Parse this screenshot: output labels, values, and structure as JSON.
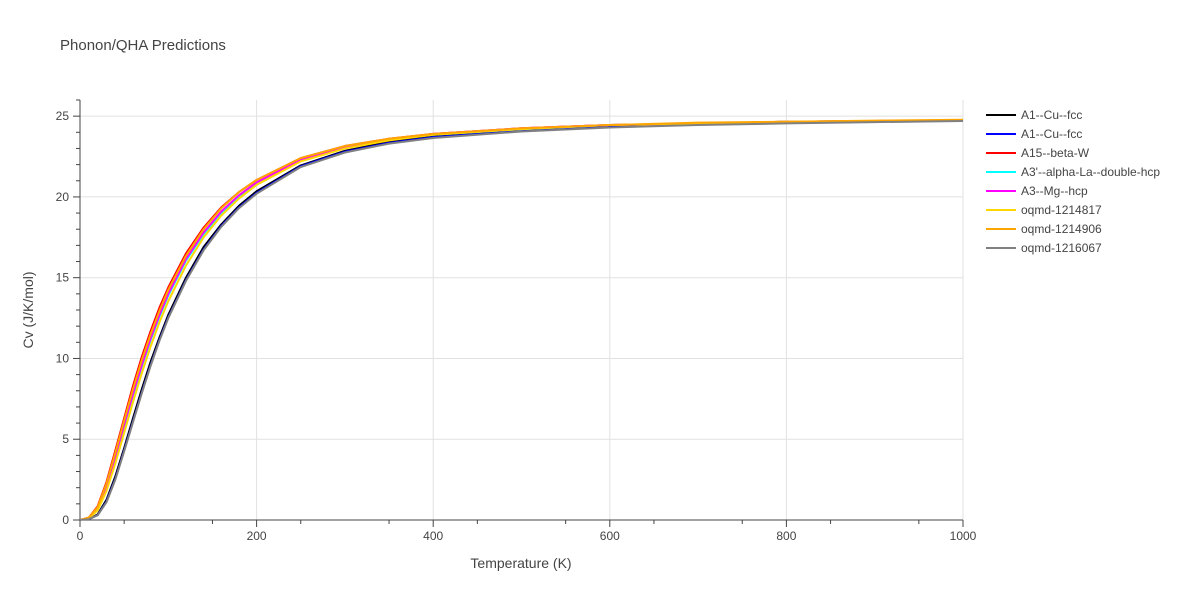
{
  "chart_data": {
    "type": "line",
    "title": "Phonon/QHA Predictions",
    "xlabel": "Temperature (K)",
    "ylabel": "Cv (J/K/mol)",
    "xlim": [
      0,
      1000
    ],
    "ylim": [
      0,
      26
    ],
    "xticks": [
      0,
      200,
      400,
      600,
      800,
      1000
    ],
    "yticks": [
      0,
      5,
      10,
      15,
      20,
      25
    ],
    "grid": true,
    "legend_position": "right",
    "x": [
      0,
      10,
      20,
      30,
      40,
      50,
      60,
      70,
      80,
      90,
      100,
      120,
      140,
      160,
      180,
      200,
      250,
      300,
      350,
      400,
      500,
      600,
      700,
      800,
      900,
      1000
    ],
    "series": [
      {
        "name": "A1--Cu--fcc",
        "color": "#000000",
        "values": [
          0,
          0.05,
          0.35,
          1.25,
          2.7,
          4.45,
          6.3,
          8.1,
          9.8,
          11.3,
          12.7,
          15.0,
          16.9,
          18.3,
          19.45,
          20.35,
          21.95,
          22.85,
          23.4,
          23.75,
          24.15,
          24.4,
          24.55,
          24.65,
          24.7,
          24.75
        ]
      },
      {
        "name": "A1--Cu--fcc",
        "color": "#0000ff",
        "values": [
          0,
          0.05,
          0.3,
          1.15,
          2.55,
          4.3,
          6.1,
          7.9,
          9.6,
          11.15,
          12.55,
          14.85,
          16.75,
          18.2,
          19.35,
          20.25,
          21.9,
          22.8,
          23.35,
          23.7,
          24.1,
          24.35,
          24.5,
          24.6,
          24.68,
          24.73
        ]
      },
      {
        "name": "A15--beta-W",
        "color": "#ff0000",
        "values": [
          0,
          0.15,
          0.85,
          2.35,
          4.3,
          6.3,
          8.3,
          10.1,
          11.7,
          13.15,
          14.4,
          16.5,
          18.1,
          19.35,
          20.3,
          21.05,
          22.4,
          23.15,
          23.6,
          23.9,
          24.25,
          24.45,
          24.55,
          24.65,
          24.7,
          24.75
        ]
      },
      {
        "name": "A3'--alpha-La--double-hcp",
        "color": "#00ffff",
        "values": [
          0,
          0.1,
          0.7,
          2.0,
          3.85,
          5.8,
          7.7,
          9.5,
          11.15,
          12.6,
          13.9,
          16.05,
          17.7,
          19.0,
          20.05,
          20.85,
          22.25,
          23.05,
          23.55,
          23.85,
          24.2,
          24.45,
          24.55,
          24.65,
          24.7,
          24.75
        ]
      },
      {
        "name": "A3--Mg--hcp",
        "color": "#ff00ff",
        "values": [
          0,
          0.1,
          0.75,
          2.1,
          3.95,
          5.9,
          7.8,
          9.6,
          11.25,
          12.7,
          14.0,
          16.15,
          17.8,
          19.1,
          20.1,
          20.9,
          22.3,
          23.1,
          23.55,
          23.9,
          24.25,
          24.45,
          24.55,
          24.65,
          24.7,
          24.75
        ]
      },
      {
        "name": "oqmd-1214817",
        "color": "#ffd700",
        "values": [
          0,
          0.1,
          0.6,
          1.8,
          3.5,
          5.4,
          7.3,
          9.1,
          10.75,
          12.25,
          13.55,
          15.75,
          17.5,
          18.85,
          19.9,
          20.75,
          22.2,
          23.0,
          23.5,
          23.85,
          24.2,
          24.45,
          24.55,
          24.65,
          24.7,
          24.75
        ]
      },
      {
        "name": "oqmd-1214906",
        "color": "#ffa500",
        "values": [
          0,
          0.15,
          0.8,
          2.25,
          4.15,
          6.15,
          8.1,
          9.9,
          11.5,
          12.95,
          14.25,
          16.35,
          18.0,
          19.3,
          20.3,
          21.05,
          22.4,
          23.15,
          23.6,
          23.9,
          24.25,
          24.45,
          24.6,
          24.65,
          24.72,
          24.78
        ]
      },
      {
        "name": "oqmd-1216067",
        "color": "#808080",
        "values": [
          0,
          0.05,
          0.3,
          1.1,
          2.5,
          4.25,
          6.05,
          7.85,
          9.55,
          11.1,
          12.5,
          14.8,
          16.7,
          18.15,
          19.3,
          20.2,
          21.85,
          22.75,
          23.3,
          23.65,
          24.05,
          24.3,
          24.45,
          24.55,
          24.63,
          24.7
        ]
      }
    ]
  }
}
